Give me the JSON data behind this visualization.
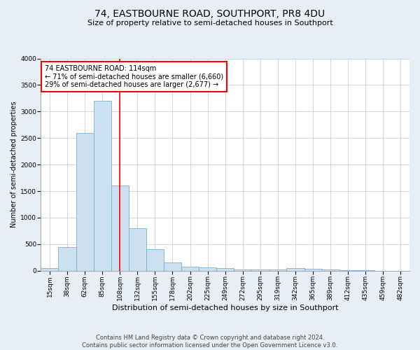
{
  "title": "74, EASTBOURNE ROAD, SOUTHPORT, PR8 4DU",
  "subtitle": "Size of property relative to semi-detached houses in Southport",
  "xlabel": "Distribution of semi-detached houses by size in Southport",
  "ylabel": "Number of semi-detached properties",
  "footer_line1": "Contains HM Land Registry data © Crown copyright and database right 2024.",
  "footer_line2": "Contains public sector information licensed under the Open Government Licence v3.0.",
  "categories": [
    "15sqm",
    "38sqm",
    "62sqm",
    "85sqm",
    "108sqm",
    "132sqm",
    "155sqm",
    "178sqm",
    "202sqm",
    "225sqm",
    "249sqm",
    "272sqm",
    "295sqm",
    "319sqm",
    "342sqm",
    "365sqm",
    "389sqm",
    "412sqm",
    "435sqm",
    "459sqm",
    "482sqm"
  ],
  "values": [
    50,
    450,
    2600,
    3200,
    1600,
    800,
    400,
    150,
    80,
    70,
    50,
    30,
    30,
    20,
    50,
    40,
    30,
    5,
    5,
    2,
    2
  ],
  "bar_color": "#cce0f0",
  "bar_edge_color": "#7aafd4",
  "vline_x_index": 4,
  "vline_color": "red",
  "annotation_text": "74 EASTBOURNE ROAD: 114sqm\n← 71% of semi-detached houses are smaller (6,660)\n29% of semi-detached houses are larger (2,677) →",
  "annotation_box_color": "white",
  "annotation_box_edge_color": "red",
  "ylim": [
    0,
    4000
  ],
  "yticks": [
    0,
    500,
    1000,
    1500,
    2000,
    2500,
    3000,
    3500,
    4000
  ],
  "bg_color": "#e8eef5",
  "plot_bg_color": "white",
  "grid_color": "#c8d0dc",
  "title_fontsize": 10,
  "subtitle_fontsize": 8,
  "xlabel_fontsize": 8,
  "ylabel_fontsize": 7,
  "tick_fontsize": 6.5,
  "annotation_fontsize": 7,
  "footer_fontsize": 6
}
